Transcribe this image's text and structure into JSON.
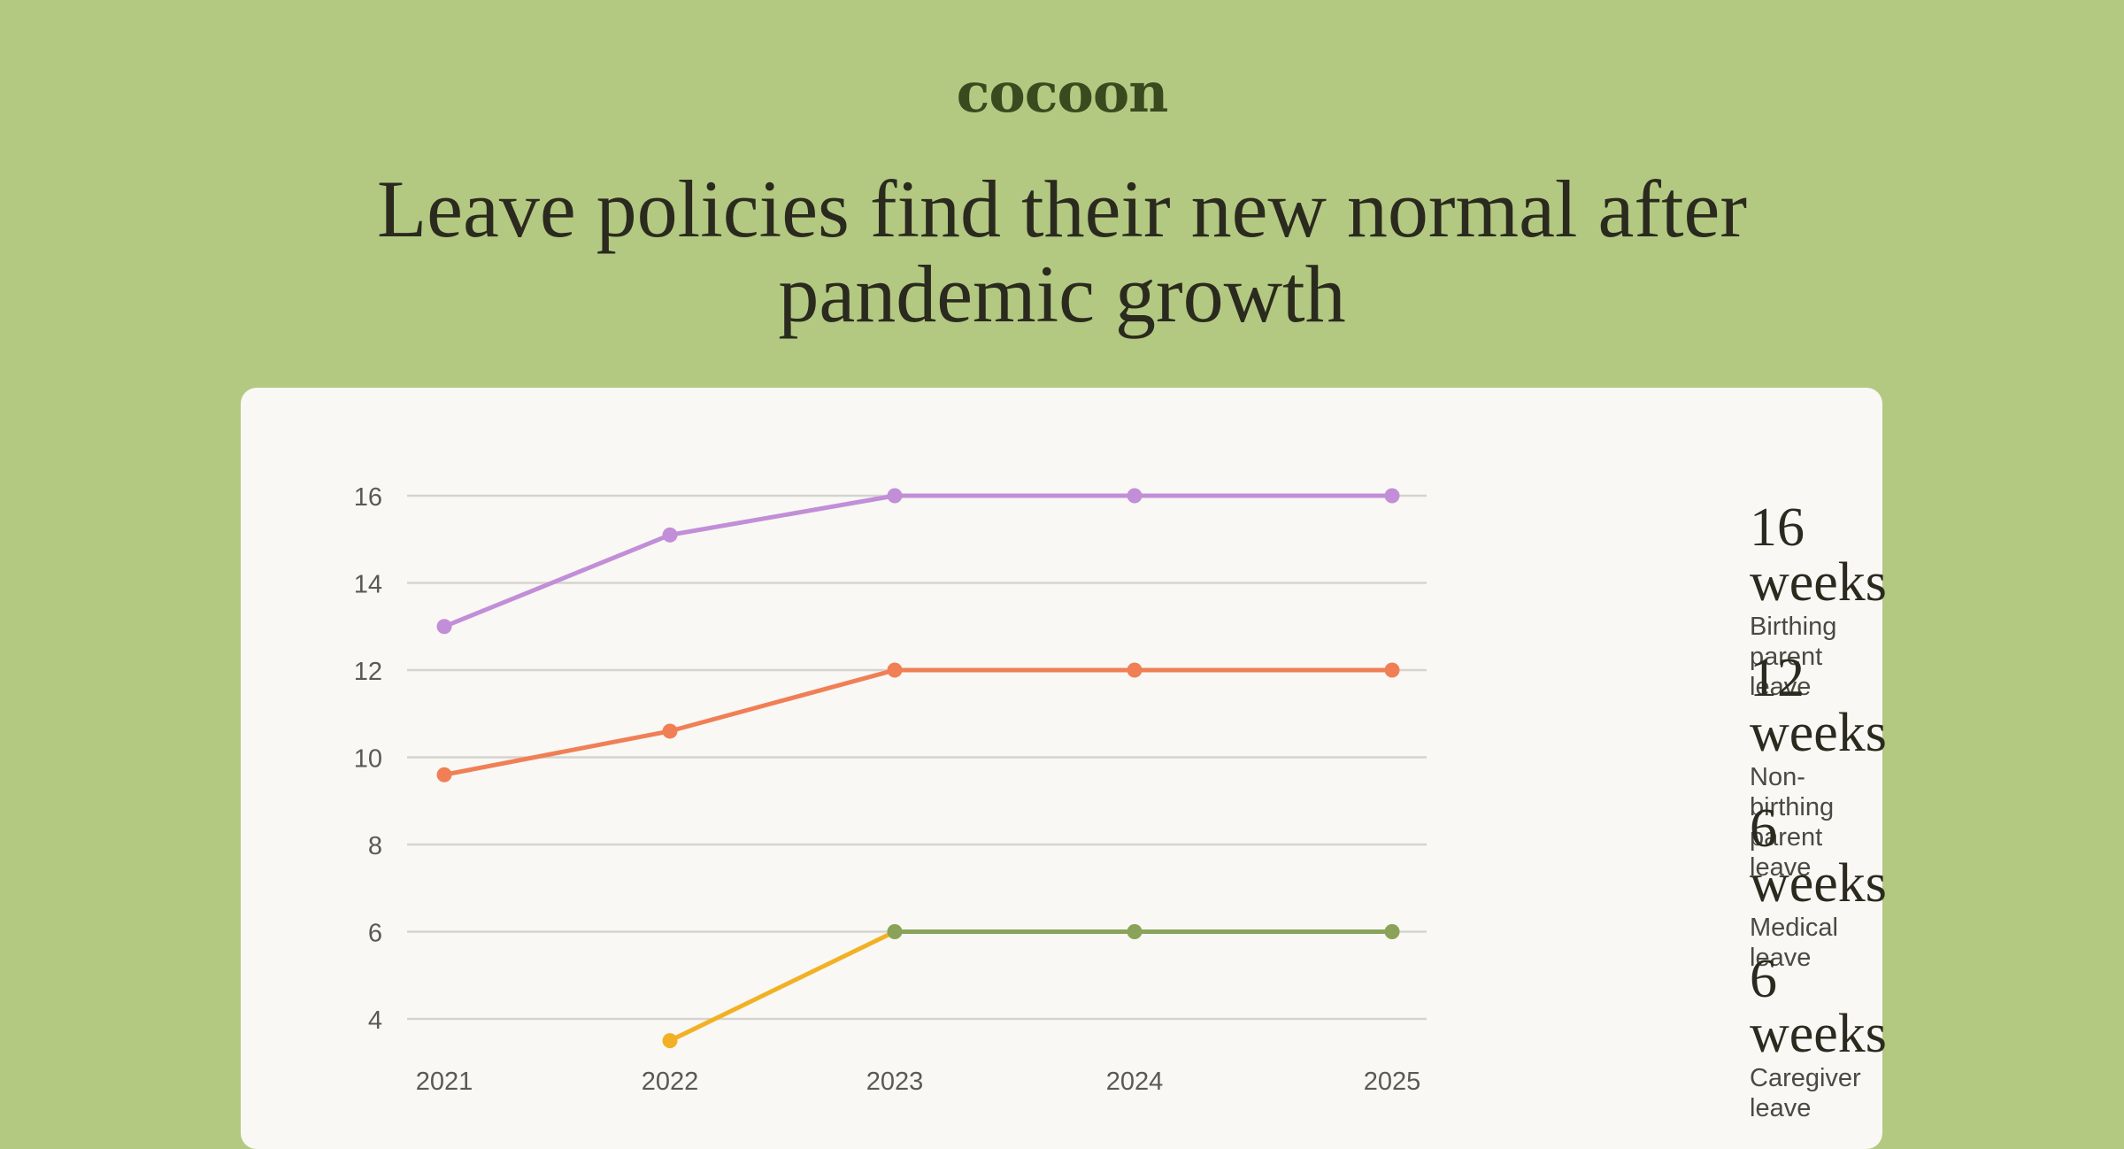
{
  "brand": {
    "logo": "cocoon"
  },
  "header": {
    "title": "Leave policies find their new normal after pandemic growth"
  },
  "colors": {
    "background": "#b3c982",
    "card": "#f9f8f4",
    "grid": "#d6d4ce",
    "axis_text": "#5a5a55"
  },
  "legend": [
    {
      "value": "16 weeks",
      "label": "Birthing parent leave"
    },
    {
      "value": "12 weeks",
      "label": "Non-birthing parent leave"
    },
    {
      "value": "6 weeks",
      "label": "Medical leave"
    },
    {
      "value": "6 weeks",
      "label": "Caregiver leave"
    }
  ],
  "chart_data": {
    "type": "line",
    "title": "",
    "xlabel": "",
    "ylabel": "",
    "x": [
      "2021",
      "2022",
      "2023",
      "2024",
      "2025"
    ],
    "y_ticks": [
      4,
      6,
      8,
      10,
      12,
      14,
      16
    ],
    "ylim": [
      3.2,
      16.4
    ],
    "grid": true,
    "series": [
      {
        "name": "Birthing parent leave",
        "color": "#c28ed8",
        "values": [
          13.0,
          15.1,
          16,
          16,
          16
        ]
      },
      {
        "name": "Non-birthing parent leave",
        "color": "#f07f56",
        "values": [
          9.6,
          10.6,
          12,
          12,
          12
        ]
      },
      {
        "name": "Caregiver leave",
        "color": "#f2b125",
        "values": [
          null,
          3.5,
          6,
          6,
          6
        ]
      },
      {
        "name": "Medical leave",
        "color": "#8aa35a",
        "values": [
          null,
          null,
          6,
          6,
          6
        ]
      }
    ]
  }
}
